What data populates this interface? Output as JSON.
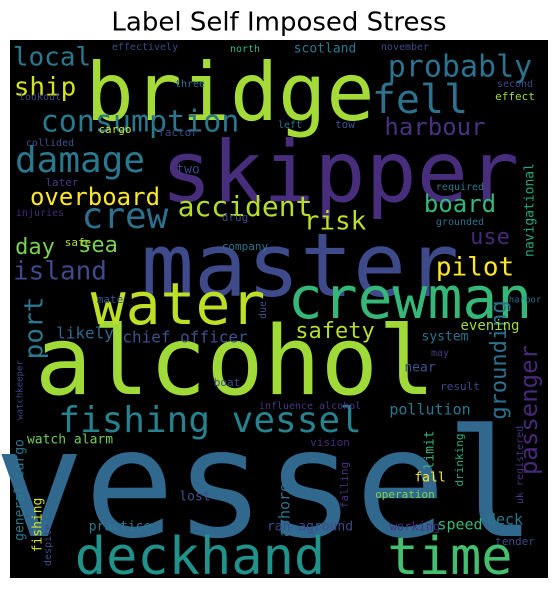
{
  "title": "Label Self Imposed Stress",
  "words": [
    "vessel",
    "alcohol",
    "master",
    "skipper",
    "bridge",
    "water",
    "crewman",
    "deckhand",
    "time",
    "fishing vessel",
    "damage",
    "consumption",
    "crew",
    "fell",
    "probably",
    "local",
    "ship",
    "harbour",
    "overboard",
    "accident",
    "risk",
    "board",
    "day",
    "sea",
    "island",
    "use",
    "pilot",
    "port",
    "safety",
    "grounding",
    "passenger",
    "chief officer",
    "likely",
    "evening",
    "system",
    "near",
    "result",
    "may",
    "pollution",
    "watch alarm",
    "general cargo",
    "fishing",
    "despite",
    "practice",
    "lost",
    "ashore",
    "ran aground",
    "working",
    "speed",
    "deck",
    "tender",
    "operation",
    "fall",
    "drinking",
    "uk registered",
    "limit",
    "falling",
    "vision",
    "influence alcohol",
    "boat",
    "due",
    "mate",
    "safe",
    "company",
    "drug",
    "two",
    "later",
    "injuries",
    "collided",
    "cargo",
    "factor",
    "three",
    "effectively",
    "north",
    "scotland",
    "november",
    "second",
    "effect",
    "lookout",
    "left",
    "tow",
    "required",
    "grounded",
    "navigational",
    "harbor",
    "watchkeeper"
  ]
}
